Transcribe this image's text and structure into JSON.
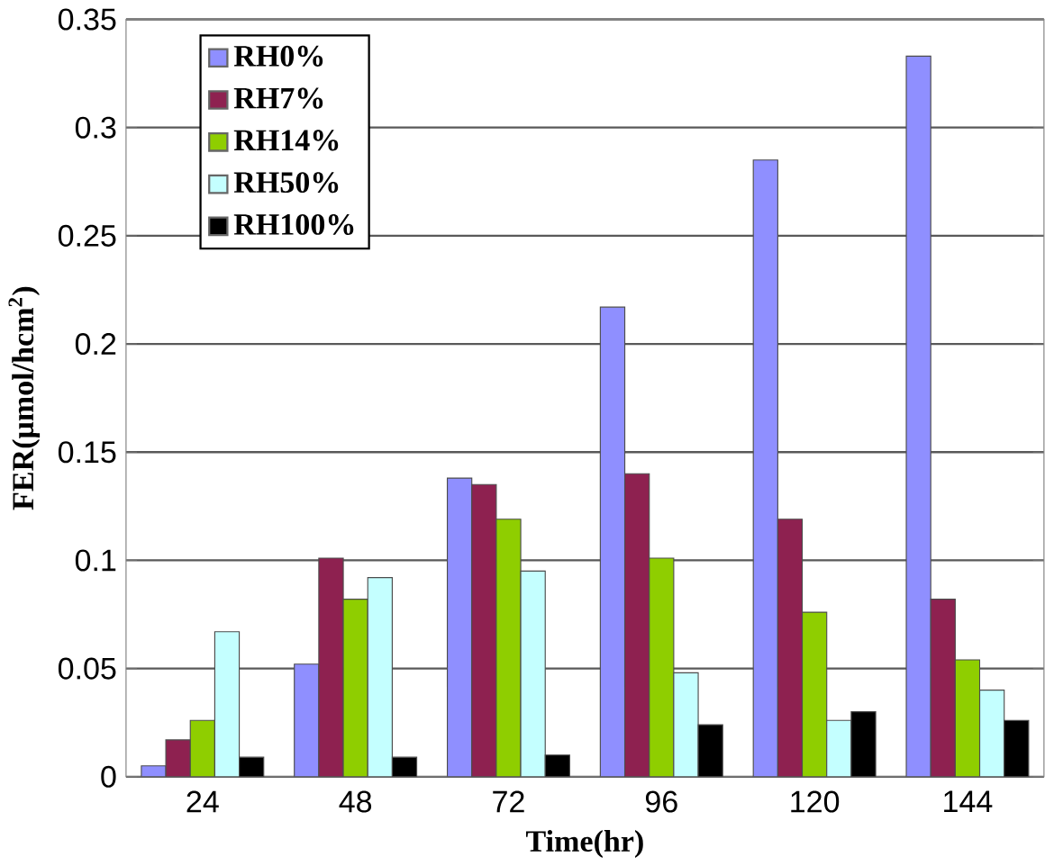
{
  "chart_data": {
    "type": "bar",
    "xlabel": "Time(hr)",
    "ylabel": "FER(μmol/hcm$^{2}$)",
    "categories": [
      "24",
      "48",
      "72",
      "96",
      "120",
      "144"
    ],
    "series": [
      {
        "name": "RH0%",
        "color": "#8f8fff",
        "values": [
          0.005,
          0.052,
          0.138,
          0.217,
          0.285,
          0.333
        ]
      },
      {
        "name": "RH7%",
        "color": "#8e2150",
        "values": [
          0.017,
          0.101,
          0.135,
          0.14,
          0.119,
          0.082
        ]
      },
      {
        "name": "RH14%",
        "color": "#8fce00",
        "values": [
          0.026,
          0.082,
          0.119,
          0.101,
          0.076,
          0.054
        ]
      },
      {
        "name": "RH50%",
        "color": "#c4ffff",
        "values": [
          0.067,
          0.092,
          0.095,
          0.048,
          0.026,
          0.04
        ]
      },
      {
        "name": "RH100%",
        "color": "#000000",
        "values": [
          0.009,
          0.009,
          0.01,
          0.024,
          0.03,
          0.026
        ]
      }
    ],
    "ylim": [
      0,
      0.35
    ],
    "yticks": [
      0,
      0.05,
      0.1,
      0.15,
      0.2,
      0.25,
      0.3,
      0.35
    ],
    "grid": "y",
    "legend": "top left"
  }
}
